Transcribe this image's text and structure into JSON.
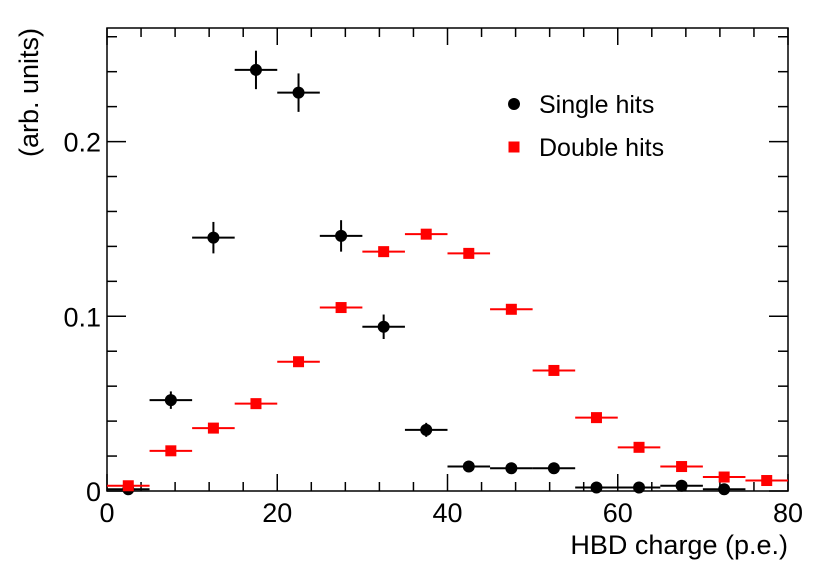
{
  "chart_data": {
    "type": "scatter",
    "title": "",
    "xlabel": "HBD charge (p.e.)",
    "ylabel": "(arb. units)",
    "xlim": [
      0,
      80
    ],
    "ylim": [
      0,
      0.265
    ],
    "x_ticks": [
      0,
      20,
      40,
      60,
      80
    ],
    "x_tick_labels": [
      "0",
      "20",
      "40",
      "60",
      "80"
    ],
    "y_ticks": [
      0,
      0.1,
      0.2
    ],
    "y_tick_labels": [
      "0",
      "0.1",
      "0.2"
    ],
    "grid": false,
    "legend_position": "top-right",
    "bin_width": 5,
    "series": [
      {
        "name": "Single hits",
        "color": "#000000",
        "marker": "circle",
        "x": [
          2.5,
          7.5,
          12.5,
          17.5,
          22.5,
          27.5,
          32.5,
          37.5,
          42.5,
          47.5,
          52.5,
          57.5,
          62.5,
          67.5,
          72.5
        ],
        "y": [
          0.001,
          0.052,
          0.145,
          0.241,
          0.228,
          0.146,
          0.094,
          0.035,
          0.014,
          0.013,
          0.013,
          0.002,
          0.002,
          0.003,
          0.001
        ],
        "yerr": [
          0.001,
          0.005,
          0.009,
          0.011,
          0.011,
          0.009,
          0.007,
          0.004,
          0.002,
          0.002,
          0.002,
          0.001,
          0.001,
          0.001,
          0.001
        ]
      },
      {
        "name": "Double hits",
        "color": "#ff0000",
        "marker": "square",
        "x": [
          2.5,
          7.5,
          12.5,
          17.5,
          22.5,
          27.5,
          32.5,
          37.5,
          42.5,
          47.5,
          52.5,
          57.5,
          62.5,
          67.5,
          72.5,
          77.5
        ],
        "y": [
          0.003,
          0.023,
          0.036,
          0.05,
          0.074,
          0.105,
          0.137,
          0.147,
          0.136,
          0.104,
          0.069,
          0.042,
          0.025,
          0.014,
          0.008,
          0.006
        ],
        "yerr": [
          0,
          0,
          0,
          0,
          0,
          0,
          0,
          0,
          0,
          0,
          0,
          0,
          0,
          0,
          0,
          0
        ]
      }
    ]
  }
}
